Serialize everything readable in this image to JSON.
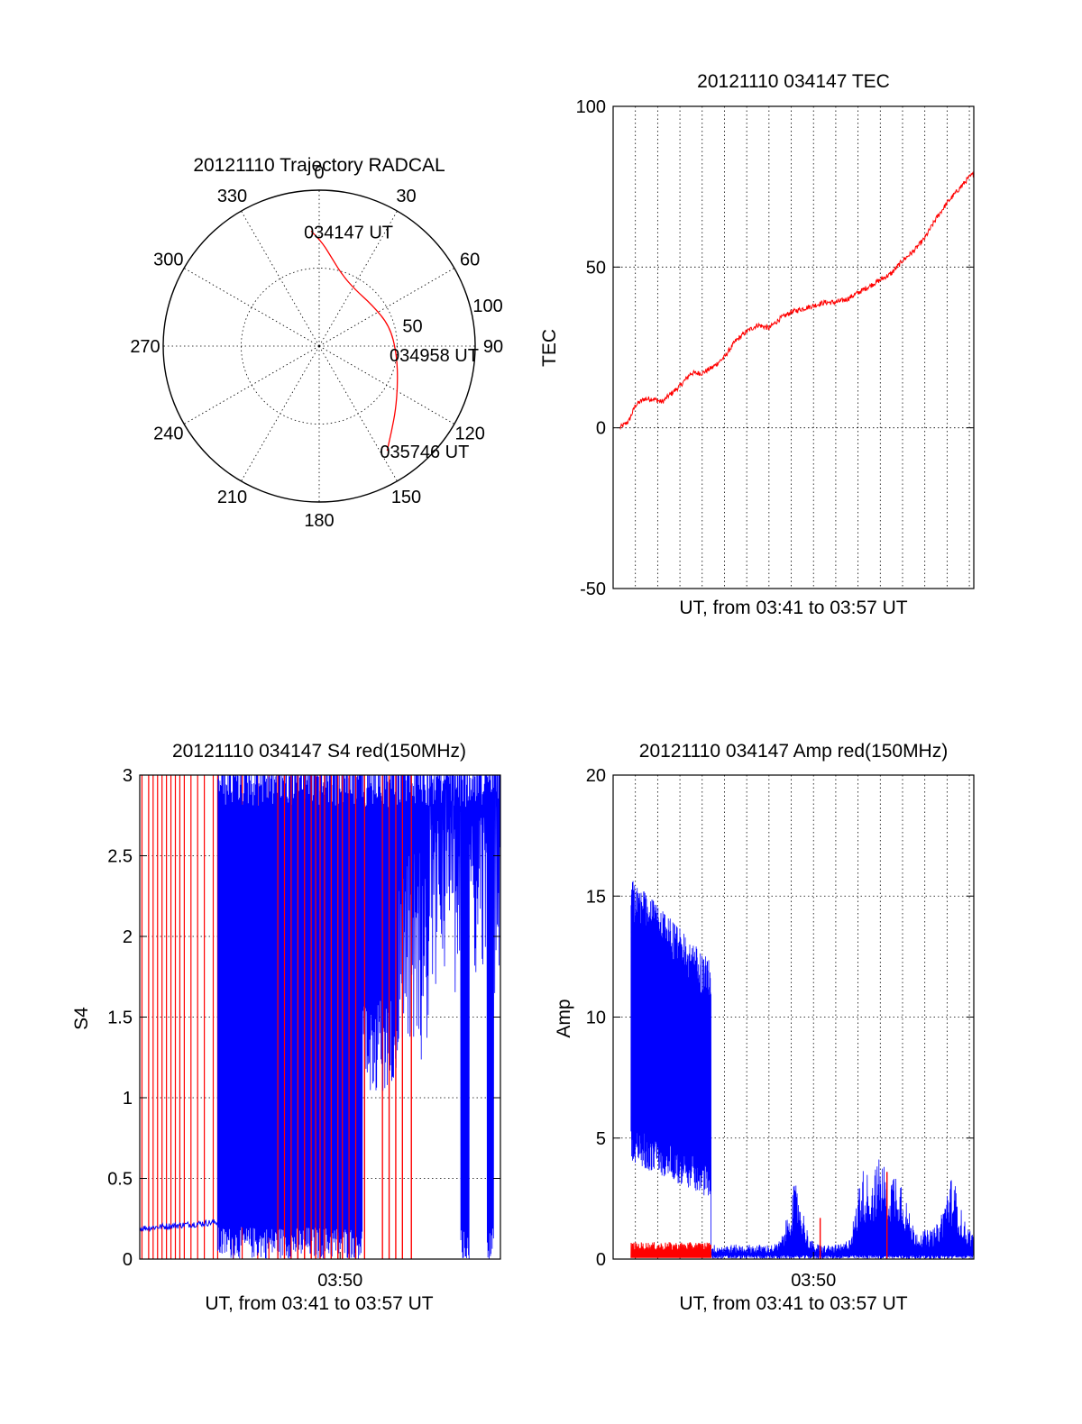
{
  "chart_data": [
    {
      "id": "polar",
      "type": "polar-trajectory",
      "title": "20121110 Trajectory RADCAL",
      "angle_labels": [
        "0",
        "30",
        "60",
        "90",
        "120",
        "150",
        "180",
        "210",
        "240",
        "270",
        "300",
        "330"
      ],
      "radial_labels": [
        "50",
        "100"
      ],
      "r_max": 100,
      "trajectory": {
        "color": "#ff0000",
        "points": [
          [
            -4,
            74
          ],
          [
            2,
            66
          ],
          [
            9,
            56
          ],
          [
            18,
            48
          ],
          [
            32,
            43
          ],
          [
            52,
            43
          ],
          [
            74,
            47
          ],
          [
            96,
            50
          ],
          [
            116,
            56
          ],
          [
            130,
            64
          ],
          [
            140,
            72
          ],
          [
            147,
            80
          ]
        ]
      },
      "annotations": [
        {
          "text": "034147 UT",
          "az": -4,
          "r": 74
        },
        {
          "text": "034958 UT",
          "az": 96,
          "r": 50
        },
        {
          "text": "035746 UT",
          "az": 147,
          "r": 80
        }
      ]
    },
    {
      "id": "tec",
      "type": "line",
      "title": "20121110 034147 TEC",
      "ylabel": "TEC",
      "xlabel": "UT, from 03:41 to 03:57 UT",
      "ylim": [
        -50,
        100
      ],
      "yticks": [
        "-50",
        "0",
        "50",
        "100"
      ],
      "xlim": [
        0,
        16.2
      ],
      "color": "#ff0000",
      "x": [
        0.3,
        0.7,
        1.0,
        1.4,
        1.8,
        2.2,
        2.5,
        3.0,
        3.5,
        4.0,
        4.5,
        5.0,
        5.5,
        6.0,
        6.5,
        7.0,
        7.5,
        8.0,
        8.5,
        9.0,
        9.5,
        10.0,
        10.5,
        11.0,
        11.5,
        12.0,
        12.5,
        13.0,
        13.5,
        14.0,
        14.5,
        15.0,
        15.5,
        16.0,
        16.2
      ],
      "y": [
        0,
        2,
        7,
        9,
        9,
        8,
        10,
        13,
        17,
        17,
        19,
        22,
        27,
        30,
        32,
        31,
        34,
        36,
        37,
        38,
        39,
        39,
        40,
        42,
        44,
        46,
        48,
        52,
        55,
        59,
        65,
        70,
        74,
        78,
        79
      ]
    },
    {
      "id": "s4",
      "type": "line",
      "title": "20121110 034147 S4 red(150MHz)",
      "ylabel": "S4",
      "xlabel": "UT, from 03:41 to 03:57 UT",
      "xtick_labels": [
        {
          "x": 9,
          "label": "03:50"
        }
      ],
      "ylim": [
        0,
        3
      ],
      "yticks": [
        "0",
        "0.5",
        "1",
        "1.5",
        "2",
        "2.5",
        "3"
      ],
      "xlim": [
        0,
        16.2
      ],
      "series": [
        {
          "color": "#0000ff",
          "baseline": {
            "x0": 0,
            "x1": 3.6,
            "y0": 0.19,
            "y1": 0.23
          },
          "burst": {
            "x0": 3.5,
            "x1": 16.2,
            "low": 0.0,
            "high": 3.0
          }
        },
        {
          "color": "#ff0000",
          "spikes_x": [
            0.1,
            0.4,
            0.6,
            0.8,
            1.0,
            1.2,
            1.4,
            1.6,
            1.8,
            2.0,
            2.3,
            2.6,
            2.9,
            3.3,
            3.5,
            4.2,
            4.6,
            5.3,
            5.8,
            6.2,
            6.5,
            6.8,
            7.1,
            7.4,
            7.7,
            7.9,
            8.1,
            8.3,
            8.6,
            8.9,
            9.1,
            9.4,
            9.7,
            10.1,
            10.9,
            11.2,
            11.5,
            11.8,
            12.2
          ]
        }
      ]
    },
    {
      "id": "amp",
      "type": "line",
      "title": "20121110 034147 Amp red(150MHz)",
      "ylabel": "Amp",
      "xlabel": "UT, from 03:41 to 03:57 UT",
      "xtick_labels": [
        {
          "x": 9,
          "label": "03:50"
        }
      ],
      "ylim": [
        0,
        20
      ],
      "yticks": [
        "0",
        "5",
        "10",
        "15",
        "20"
      ],
      "xlim": [
        0,
        16.2
      ],
      "series": [
        {
          "color": "#0000ff",
          "high_band": {
            "x0": 0.8,
            "x1": 4.4,
            "low_start": 5.5,
            "low_end": 4.0,
            "high_start": 14.5,
            "high_end": 11.0
          },
          "low_noise": {
            "x0": 4.4,
            "x1": 16.2,
            "level": 0.6
          },
          "bumps": [
            {
              "x": 8.2,
              "amp": 2.5
            },
            {
              "x": 11.2,
              "amp": 2.4
            },
            {
              "x": 12.0,
              "amp": 2.8
            },
            {
              "x": 12.8,
              "amp": 2.5
            },
            {
              "x": 15.2,
              "amp": 2.2
            }
          ]
        },
        {
          "color": "#ff0000",
          "band": {
            "x0": 0.8,
            "x1": 4.4,
            "level": 0.35
          },
          "spikes": [
            {
              "x": 9.3,
              "amp": 1.7
            },
            {
              "x": 12.3,
              "amp": 3.6
            }
          ]
        }
      ]
    }
  ]
}
